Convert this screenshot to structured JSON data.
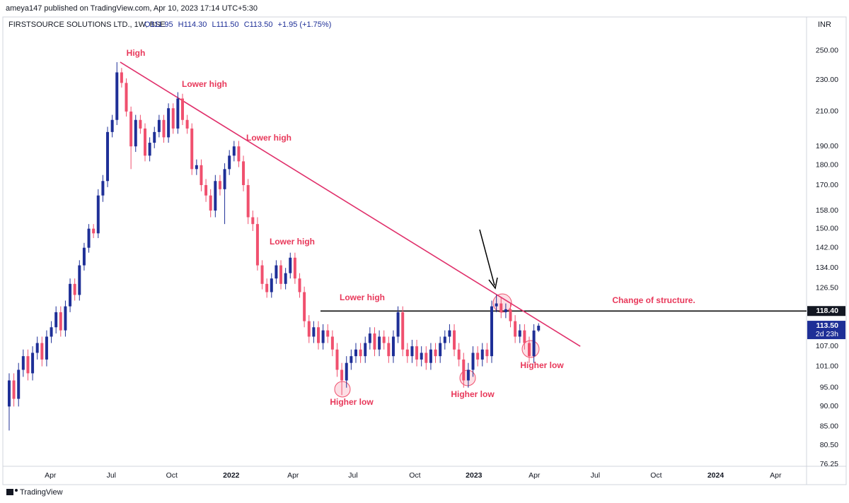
{
  "header": {
    "published": "ameya147 published on TradingView.com, Apr 10, 2023 17:14 UTC+5:30",
    "symbol": "FIRSTSOURCE SOLUTIONS LTD., 1W, BSE",
    "quote": [
      "O111.95",
      "H114.30",
      "L111.50",
      "C113.50",
      "+1.95 (+1.75%)"
    ],
    "currency": "INR",
    "brand": "TradingView"
  },
  "chart_data": {
    "type": "candlestick",
    "log_scale": true,
    "grid": false,
    "up_color": "#1e2f97",
    "down_color": "#f0506e",
    "categories": [
      null,
      null,
      null,
      null,
      null,
      null,
      null,
      null,
      null,
      null,
      null,
      null,
      null,
      null,
      null,
      null,
      null,
      null,
      null,
      null,
      null,
      null,
      null,
      null,
      null,
      null,
      null,
      null,
      null,
      null,
      null,
      null,
      null,
      null,
      null,
      null,
      null,
      null,
      null,
      null,
      null,
      null,
      null,
      null,
      null,
      null,
      null,
      null,
      null,
      null,
      null,
      null,
      null,
      null,
      null,
      null,
      null,
      null,
      null,
      null,
      null,
      null,
      null,
      null,
      null,
      null,
      null,
      null,
      null,
      null,
      null,
      null,
      null,
      null,
      null,
      null,
      null,
      null,
      null,
      null,
      null,
      null,
      null,
      null,
      null,
      null,
      null,
      null,
      null,
      null,
      null,
      null,
      null,
      null,
      null,
      null,
      null,
      null,
      null,
      null,
      null,
      null,
      null,
      null,
      null,
      null,
      null,
      null,
      null,
      null,
      null,
      null,
      null,
      null
    ],
    "open": [
      90,
      97,
      92,
      100,
      104,
      99,
      105,
      108,
      103,
      110,
      113,
      118,
      112,
      120,
      128,
      124,
      135,
      142,
      150,
      148,
      165,
      172,
      198,
      205,
      235,
      228,
      210,
      190,
      205,
      200,
      185,
      192,
      198,
      205,
      195,
      212,
      200,
      218,
      205,
      200,
      178,
      180,
      170,
      165,
      158,
      172,
      168,
      178,
      185,
      190,
      182,
      170,
      155,
      152,
      135,
      128,
      125,
      130,
      135,
      128,
      132,
      138,
      130,
      125,
      115,
      110,
      113,
      108,
      112,
      110,
      106,
      100,
      97,
      102,
      104,
      106,
      104,
      108,
      111,
      106,
      110,
      108,
      104,
      110,
      118,
      106,
      104,
      107,
      103,
      105,
      102,
      106,
      104,
      108,
      110,
      112,
      106,
      103,
      97,
      100,
      105,
      103,
      106,
      104,
      120,
      121,
      118,
      119,
      115,
      110,
      112,
      108,
      104,
      111.95
    ],
    "high": [
      99,
      99,
      102,
      106,
      106,
      107,
      110,
      110,
      112,
      115,
      120,
      120,
      122,
      130,
      130,
      137,
      144,
      152,
      152,
      168,
      175,
      201,
      208,
      242,
      238,
      231,
      213,
      208,
      208,
      203,
      195,
      201,
      208,
      208,
      215,
      215,
      222,
      221,
      208,
      203,
      183,
      183,
      173,
      168,
      175,
      175,
      181,
      188,
      193,
      193,
      185,
      173,
      158,
      155,
      137,
      130,
      132,
      137,
      137,
      134,
      140,
      140,
      132,
      127,
      117,
      115,
      115,
      114,
      114,
      112,
      108,
      102,
      104,
      106,
      108,
      108,
      110,
      113,
      113,
      112,
      112,
      110,
      112,
      120,
      120,
      108,
      109,
      109,
      107,
      107,
      108,
      108,
      110,
      112,
      114,
      114,
      108,
      105,
      102,
      107,
      107,
      108,
      108,
      122,
      124,
      123,
      121,
      121,
      117,
      114,
      114,
      110,
      114,
      114.3
    ],
    "low": [
      84,
      90,
      90,
      98,
      97,
      97,
      103,
      101,
      101,
      108,
      111,
      110,
      110,
      118,
      122,
      122,
      133,
      140,
      146,
      146,
      162,
      169,
      195,
      202,
      225,
      207,
      178,
      187,
      197,
      182,
      182,
      189,
      195,
      192,
      192,
      197,
      197,
      202,
      197,
      175,
      175,
      167,
      162,
      155,
      155,
      165,
      152,
      175,
      182,
      179,
      167,
      152,
      149,
      133,
      126,
      123,
      123,
      128,
      126,
      126,
      130,
      128,
      123,
      113,
      108,
      108,
      106,
      106,
      108,
      104,
      98,
      93,
      95,
      100,
      102,
      102,
      102,
      106,
      104,
      104,
      106,
      102,
      102,
      108,
      104,
      102,
      102,
      101,
      101,
      100,
      100,
      102,
      102,
      106,
      108,
      104,
      101,
      95,
      95,
      98,
      101,
      101,
      102,
      102,
      118,
      116,
      116,
      113,
      108,
      108,
      106,
      102,
      102,
      111.5
    ],
    "close": [
      97,
      92,
      100,
      104,
      99,
      105,
      108,
      103,
      110,
      113,
      118,
      112,
      120,
      128,
      124,
      135,
      142,
      150,
      148,
      165,
      172,
      198,
      205,
      235,
      228,
      210,
      190,
      205,
      200,
      185,
      192,
      198,
      205,
      195,
      212,
      200,
      218,
      205,
      200,
      178,
      180,
      170,
      165,
      158,
      172,
      168,
      178,
      185,
      190,
      182,
      170,
      155,
      152,
      135,
      128,
      125,
      130,
      135,
      128,
      132,
      138,
      130,
      125,
      115,
      110,
      113,
      108,
      112,
      110,
      106,
      100,
      97,
      102,
      104,
      106,
      104,
      108,
      111,
      106,
      110,
      108,
      104,
      110,
      118,
      106,
      104,
      107,
      103,
      105,
      102,
      106,
      104,
      108,
      110,
      112,
      106,
      103,
      97,
      100,
      105,
      103,
      106,
      104,
      120,
      121,
      118,
      119,
      115,
      110,
      112,
      108,
      104,
      111.95,
      113.5
    ],
    "xlim": [
      -0.75,
      170.2
    ],
    "xticks": [
      {
        "value": 8.8,
        "label": "Apr"
      },
      {
        "value": 21.8,
        "label": "Jul"
      },
      {
        "value": 34.7,
        "label": "Oct"
      },
      {
        "value": 47.4,
        "label": "2022"
      },
      {
        "value": 60.6,
        "label": "Apr"
      },
      {
        "value": 73.4,
        "label": "Jul"
      },
      {
        "value": 86.6,
        "label": "Oct"
      },
      {
        "value": 99.2,
        "label": "2023"
      },
      {
        "value": 112.1,
        "label": "Apr"
      },
      {
        "value": 125.1,
        "label": "Jul"
      },
      {
        "value": 138.1,
        "label": "Oct"
      },
      {
        "value": 150.8,
        "label": "2024"
      },
      {
        "value": 163.6,
        "label": "Apr"
      }
    ],
    "ylim": [
      75.8,
      275
    ],
    "yticks": [
      {
        "value": 250,
        "label": "250.00"
      },
      {
        "value": 230,
        "label": "230.00"
      },
      {
        "value": 210,
        "label": "210.00"
      },
      {
        "value": 190,
        "label": "190.00"
      },
      {
        "value": 180,
        "label": "180.00"
      },
      {
        "value": 170,
        "label": "170.00"
      },
      {
        "value": 158,
        "label": "158.00"
      },
      {
        "value": 150,
        "label": "150.00"
      },
      {
        "value": 142,
        "label": "142.00"
      },
      {
        "value": 134,
        "label": "134.00"
      },
      {
        "value": 126.5,
        "label": "126.50"
      },
      {
        "value": 107,
        "label": "107.00"
      },
      {
        "value": 101,
        "label": "101.00"
      },
      {
        "value": 95,
        "label": "95.00"
      },
      {
        "value": 90,
        "label": "90.00"
      },
      {
        "value": 85,
        "label": "85.00"
      },
      {
        "value": 80.5,
        "label": "80.50"
      },
      {
        "value": 76.25,
        "label": "76.25"
      }
    ],
    "price_labels": [
      {
        "value": 118.4,
        "label": "118.40",
        "color": "#131722"
      },
      {
        "value": 113.5,
        "label": "113.50",
        "countdown": "2d 23h",
        "color": "#1e2f97"
      }
    ],
    "trendline": {
      "x": [
        23.7,
        121.9
      ],
      "y": [
        242,
        107
      ],
      "color": "#e0306b"
    },
    "annotations": [
      "High",
      "Lower high",
      "Lower high",
      "Lower high",
      "Lower high",
      "Higher low",
      "Higher low",
      "Higher low",
      "Change of structure."
    ]
  }
}
